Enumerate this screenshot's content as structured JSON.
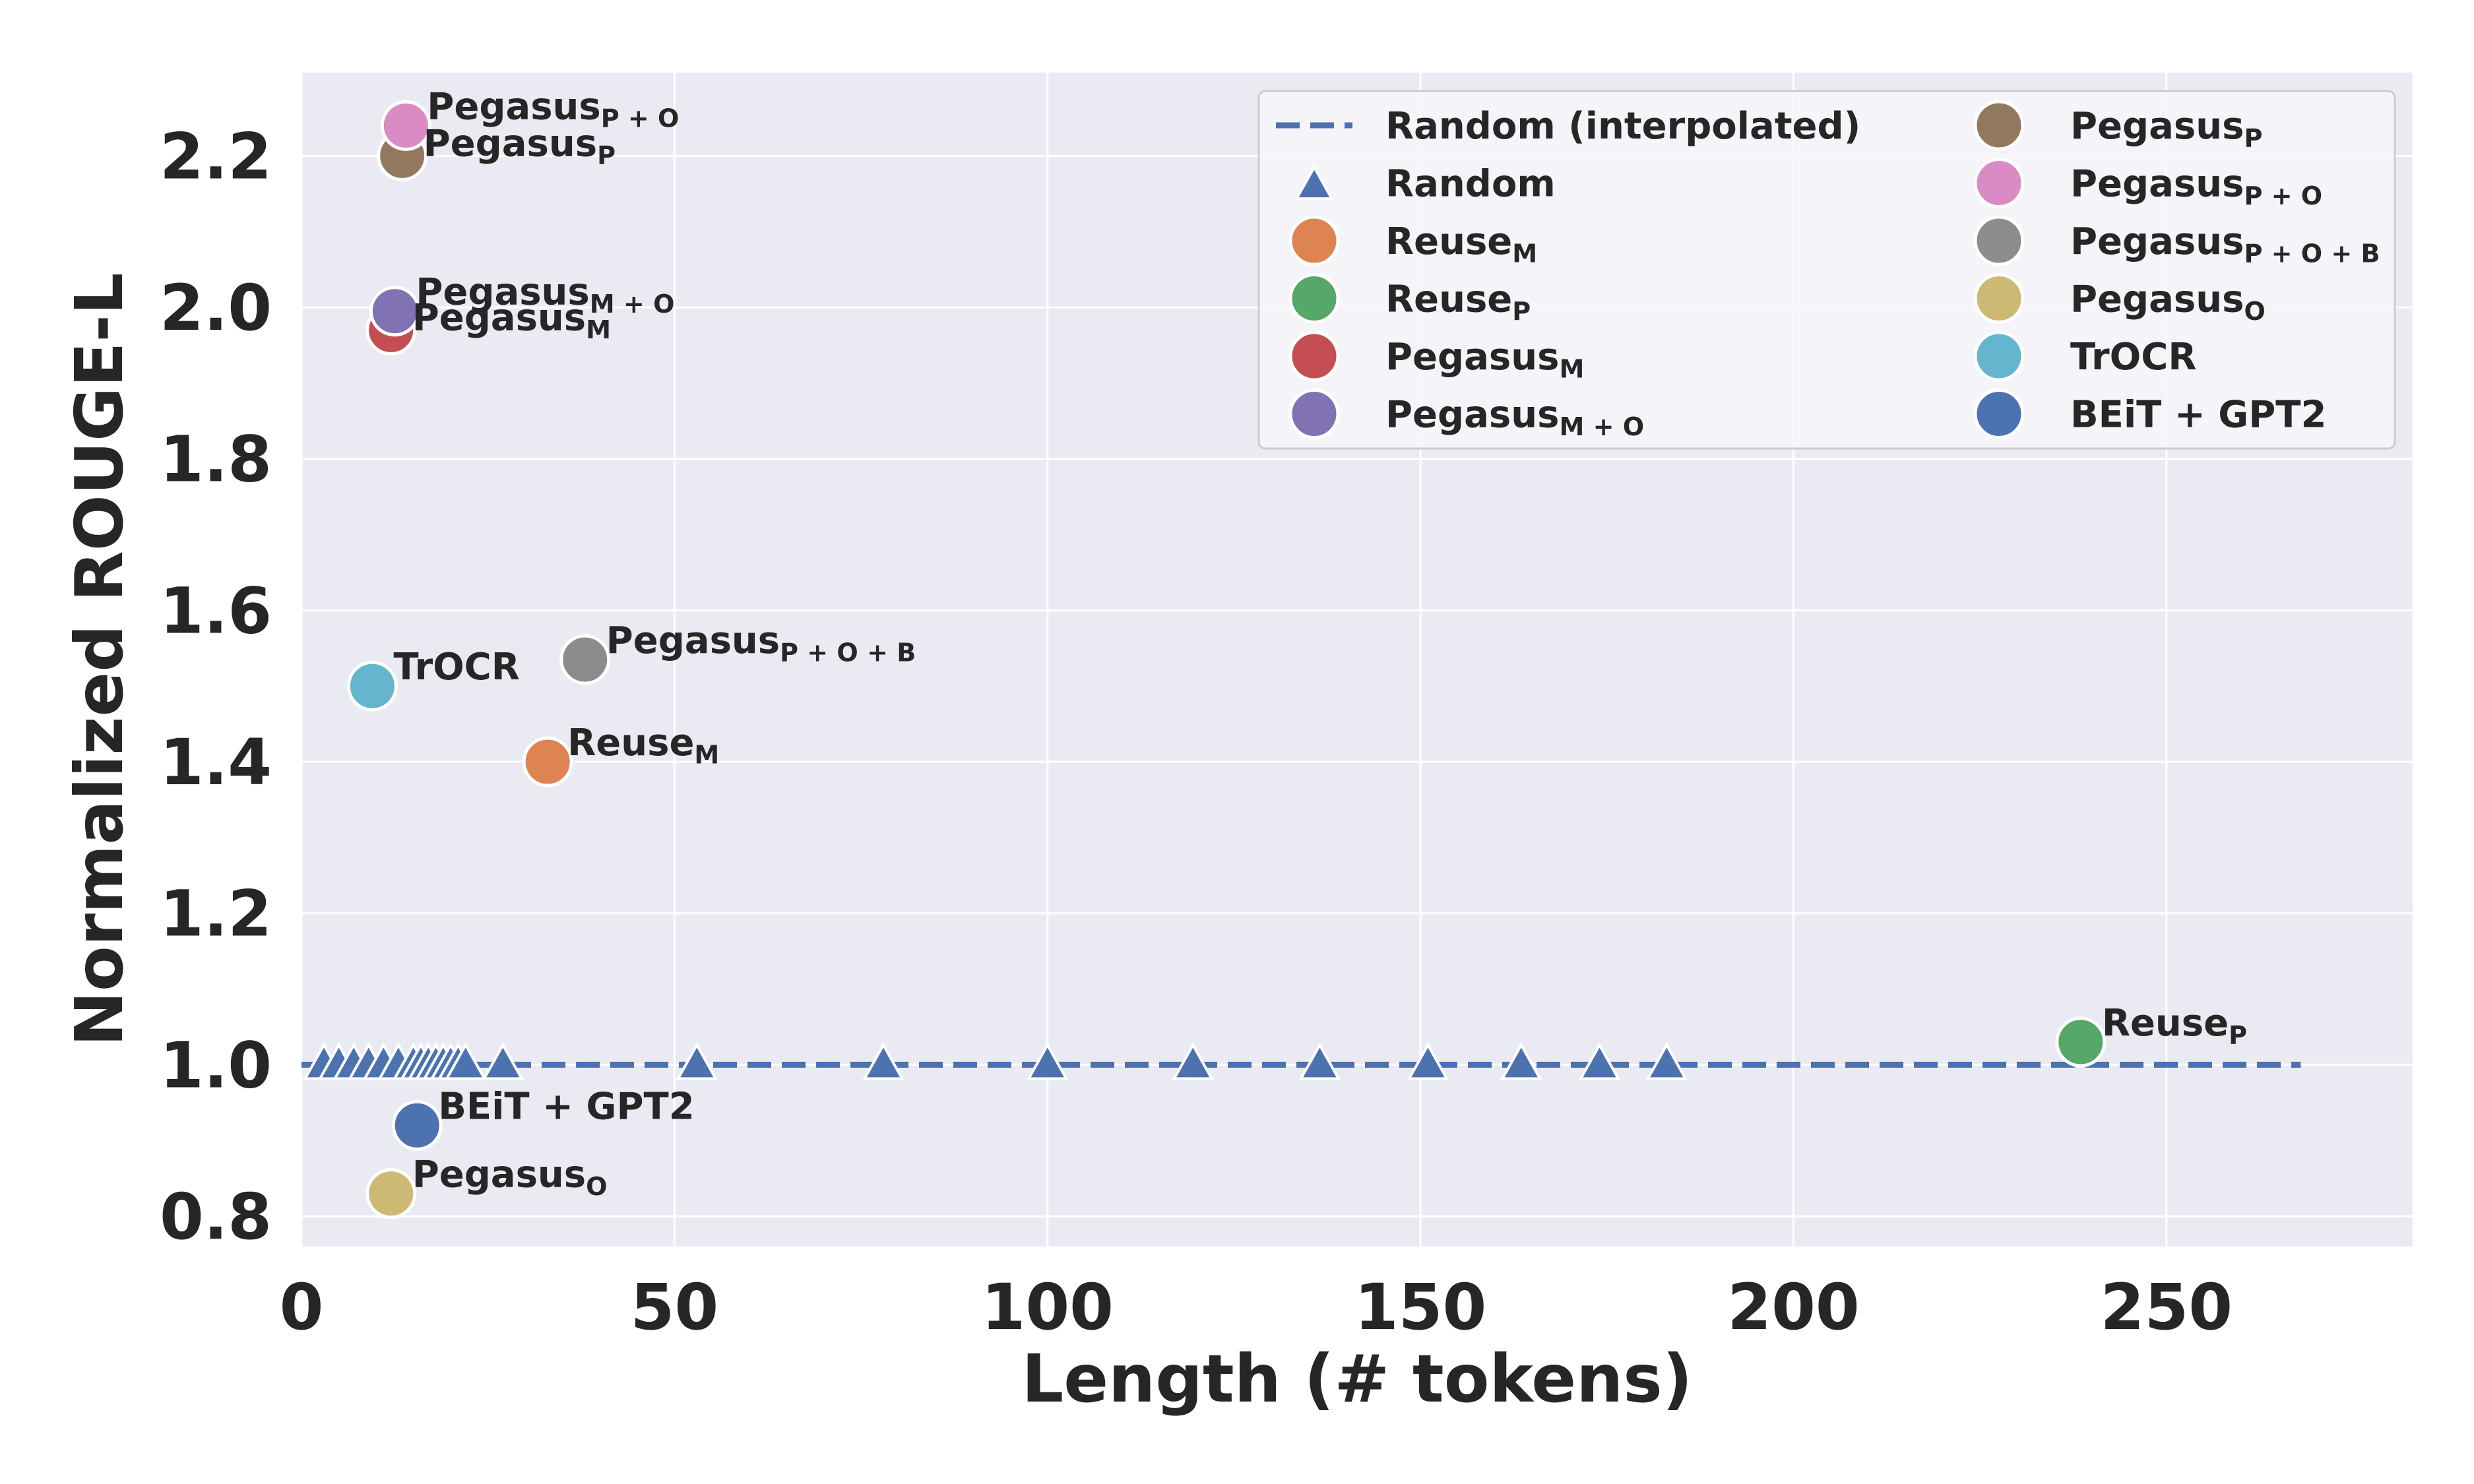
{
  "chart_data": {
    "type": "scatter",
    "xlabel": "Length (# tokens)",
    "ylabel": "Normalized ROUGE-L",
    "xlim": [
      0,
      283
    ],
    "ylim": [
      0.76,
      2.31
    ],
    "xticks": [
      0,
      50,
      100,
      150,
      200,
      250
    ],
    "yticks": [
      0.8,
      1.0,
      1.2,
      1.4,
      1.6,
      1.8,
      2.0,
      2.2
    ],
    "xtick_labels": [
      "0",
      "50",
      "100",
      "150",
      "200",
      "250"
    ],
    "ytick_labels": [
      "0.8",
      "1.0",
      "1.2",
      "1.4",
      "1.6",
      "1.8",
      "2.0",
      "2.2"
    ],
    "grid": true,
    "legend_position": "top-right",
    "reference_line": {
      "name": "Random (interpolated)",
      "x": [
        0,
        268
      ],
      "y": [
        1.0,
        1.0
      ],
      "style": "dashed",
      "color": "#4c72b0"
    },
    "random_series": {
      "name": "Random",
      "marker": "triangle",
      "color": "#4c72b0",
      "x": [
        3,
        5,
        7,
        9,
        11,
        13,
        15,
        16,
        17,
        18,
        19,
        20,
        21,
        22,
        27,
        53,
        78,
        100,
        119.5,
        136.5,
        151,
        163.5,
        174,
        183
      ],
      "y": [
        1.0,
        1.0,
        1.0,
        1.0,
        1.0,
        1.0,
        1.0,
        1.0,
        1.0,
        1.0,
        1.0,
        1.0,
        1.0,
        1.0,
        1.0,
        1.0,
        1.0,
        1.0,
        1.0,
        1.0,
        1.0,
        1.0,
        1.0,
        1.0
      ]
    },
    "points": [
      {
        "key": "reuse-m",
        "base": "Reuse",
        "sub": "M",
        "x": 33,
        "y": 1.4,
        "color": "#dd8452",
        "label_dx": 30,
        "label_dy": -10
      },
      {
        "key": "reuse-p",
        "base": "Reuse",
        "sub": "P",
        "x": 238.5,
        "y": 1.03,
        "color": "#55a868",
        "label_dx": 32,
        "label_dy": -10
      },
      {
        "key": "pegasus-m",
        "base": "Pegasus",
        "sub": "M",
        "x": 12,
        "y": 1.97,
        "color": "#c44e52",
        "label_dx": 32,
        "label_dy": 0
      },
      {
        "key": "pegasus-mo",
        "base": "Pegasus",
        "sub": "M + O",
        "x": 12.5,
        "y": 1.995,
        "color": "#8172b3",
        "label_dx": 32,
        "label_dy": -10
      },
      {
        "key": "pegasus-p",
        "base": "Pegasus",
        "sub": "P",
        "x": 13.5,
        "y": 2.2,
        "color": "#937860",
        "label_dx": 32,
        "label_dy": 0
      },
      {
        "key": "pegasus-po",
        "base": "Pegasus",
        "sub": "P + O",
        "x": 14,
        "y": 2.24,
        "color": "#da8bc3",
        "label_dx": 32,
        "label_dy": -10
      },
      {
        "key": "pegasus-pob",
        "base": "Pegasus",
        "sub": "P + O + B",
        "x": 38,
        "y": 1.535,
        "color": "#8c8c8c",
        "label_dx": 32,
        "label_dy": -10
      },
      {
        "key": "pegasus-o",
        "base": "Pegasus",
        "sub": "O",
        "x": 12,
        "y": 0.83,
        "color": "#ccb974",
        "label_dx": 32,
        "label_dy": -10
      },
      {
        "key": "trocr",
        "base": "TrOCR",
        "sub": "",
        "x": 9.5,
        "y": 1.5,
        "color": "#64b5cd",
        "label_dx": 32,
        "label_dy": -10
      },
      {
        "key": "beit-gpt2",
        "base": "BEiT + GPT2",
        "sub": "",
        "x": 15.5,
        "y": 0.92,
        "color": "#4c72b0",
        "label_dx": 32,
        "label_dy": -10
      }
    ],
    "legend": {
      "left_column": [
        {
          "base": "Random (interpolated)",
          "sub": "",
          "marker": "dash",
          "color": "#4c72b0"
        },
        {
          "base": "Random",
          "sub": "",
          "marker": "triangle",
          "color": "#4c72b0"
        },
        {
          "base": "Reuse",
          "sub": "M",
          "marker": "circle",
          "color": "#dd8452"
        },
        {
          "base": "Reuse",
          "sub": "P",
          "marker": "circle",
          "color": "#55a868"
        },
        {
          "base": "Pegasus",
          "sub": "M",
          "marker": "circle",
          "color": "#c44e52"
        },
        {
          "base": "Pegasus",
          "sub": "M + O",
          "marker": "circle",
          "color": "#8172b3"
        }
      ],
      "right_column": [
        {
          "base": "Pegasus",
          "sub": "P",
          "marker": "circle",
          "color": "#937860"
        },
        {
          "base": "Pegasus",
          "sub": "P + O",
          "marker": "circle",
          "color": "#da8bc3"
        },
        {
          "base": "Pegasus",
          "sub": "P + O + B",
          "marker": "circle",
          "color": "#8c8c8c"
        },
        {
          "base": "Pegasus",
          "sub": "O",
          "marker": "circle",
          "color": "#ccb974"
        },
        {
          "base": "TrOCR",
          "sub": "",
          "marker": "circle",
          "color": "#64b5cd"
        },
        {
          "base": "BEiT + GPT2",
          "sub": "",
          "marker": "circle",
          "color": "#4c72b0"
        }
      ]
    },
    "colors": {
      "plot_background": "#eaeaf2",
      "grid": "#ffffff",
      "text": "#262626"
    }
  }
}
